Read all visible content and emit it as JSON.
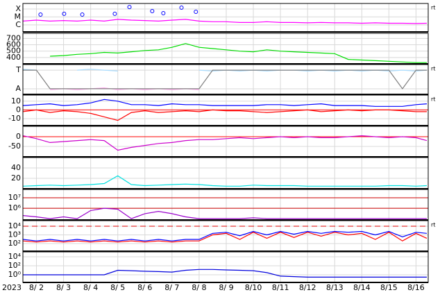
{
  "chart_data": [
    {
      "type": "line",
      "log": true,
      "right_label": "rt",
      "x": [
        1.5,
        2,
        2.5,
        3,
        3.5,
        4,
        4.5,
        5,
        5.5,
        6,
        6.5,
        7,
        7.5,
        8,
        8.5,
        9,
        9.5,
        10,
        10.5,
        11,
        11.5,
        12,
        12.5,
        13,
        13.5,
        14,
        14.5,
        15,
        15.5,
        16,
        16.4
      ],
      "xlim": [
        1.5,
        16.45
      ],
      "ylim": [
        1.3e-07,
        0.0005
      ],
      "yticks": [
        {
          "value": 0.0001,
          "label": "X"
        },
        {
          "value": 1e-05,
          "label": "M"
        },
        {
          "value": 1e-06,
          "label": "C"
        }
      ],
      "series": [
        {
          "color": "#ff00ff",
          "values": [
            3e-06,
            4e-06,
            3e-06,
            3.5e-06,
            3e-06,
            4e-06,
            3e-06,
            5e-06,
            4e-06,
            3.5e-06,
            3e-06,
            4e-06,
            5e-06,
            3e-06,
            2.5e-06,
            2.5e-06,
            2e-06,
            2e-06,
            2.5e-06,
            2e-06,
            2e-06,
            1.8e-06,
            2e-06,
            1.8e-06,
            1.8e-06,
            1.6e-06,
            1.8e-06,
            1.6e-06,
            1.6e-06,
            1.5e-06,
            1.6e-06
          ]
        }
      ],
      "markers": {
        "color": "#0000ff",
        "x": [
          2.15,
          3.02,
          3.69,
          4.89,
          5.43,
          6.27,
          6.68,
          7.35,
          7.88
        ],
        "values": [
          2e-05,
          2.5e-05,
          2e-05,
          2.5e-05,
          0.00018,
          5.5e-05,
          3e-05,
          0.00015,
          4.5e-05
        ]
      }
    },
    {
      "type": "line",
      "log": false,
      "x": [
        1.5,
        2,
        2.5,
        3,
        3.5,
        4,
        4.5,
        5,
        5.5,
        6,
        6.5,
        7,
        7.5,
        8,
        8.5,
        9,
        9.5,
        10,
        10.5,
        11,
        11.5,
        12,
        12.5,
        13,
        13.5,
        14,
        14.5,
        15,
        15.5,
        16,
        16.4
      ],
      "xlim": [
        1.5,
        16.45
      ],
      "ylim": [
        300,
        780
      ],
      "yticks": [
        700,
        600,
        500,
        400
      ],
      "series": [
        {
          "color": "#00dd00",
          "values": [
            null,
            null,
            420,
            430,
            450,
            460,
            480,
            470,
            490,
            510,
            520,
            560,
            620,
            560,
            540,
            520,
            500,
            490,
            520,
            500,
            490,
            480,
            470,
            460,
            370,
            360,
            350,
            340,
            330,
            320,
            320
          ]
        }
      ]
    },
    {
      "type": "line",
      "log": false,
      "right_label": "rt",
      "x": [
        1.5,
        2,
        2.5,
        3,
        3.5,
        4,
        4.5,
        5,
        5.5,
        6,
        6.5,
        7,
        7.5,
        8,
        8.5,
        9,
        9.5,
        10,
        10.5,
        11,
        11.5,
        12,
        12.5,
        13,
        13.5,
        14,
        14.5,
        15,
        15.5,
        16,
        16.4
      ],
      "xlim": [
        1.5,
        16.45
      ],
      "ylim": [
        -0.3,
        1.3
      ],
      "yticks": [
        {
          "value": 1,
          "label": "T"
        },
        {
          "value": 0,
          "label": "A"
        }
      ],
      "series": [
        {
          "color": "#aaddff",
          "values": [
            1.05,
            1.0,
            null,
            null,
            1.0,
            1.05,
            1.0,
            0.95,
            null,
            null,
            null,
            null,
            null,
            1.0,
            0.95,
            1.0,
            0.95,
            1.0,
            0.95,
            1.0,
            1.0,
            0.95,
            1.0,
            0.95,
            1.0,
            0.95,
            1.0,
            0.95,
            1.0,
            0.95,
            1.0
          ]
        },
        {
          "color": "#ffaaee",
          "values": [
            null,
            null,
            -0.05,
            0,
            -0.05,
            0,
            0.05,
            -0.05,
            0,
            -0.05,
            0,
            -0.05,
            0,
            -0.05,
            null,
            null,
            null,
            null,
            null,
            null,
            null,
            null,
            null,
            null,
            null,
            null,
            null,
            null,
            null,
            null,
            null
          ]
        },
        {
          "color": "#808080",
          "values": [
            1,
            1,
            0,
            0,
            0,
            0,
            0,
            0,
            0,
            0,
            0,
            0,
            0,
            0,
            1,
            1,
            1,
            1,
            1,
            1,
            1,
            1,
            1,
            1,
            1,
            1,
            1,
            1,
            0,
            1,
            1
          ]
        }
      ]
    },
    {
      "type": "line",
      "log": false,
      "right_label": "rt",
      "x": [
        1.5,
        2,
        2.5,
        3,
        3.5,
        4,
        4.5,
        5,
        5.5,
        6,
        6.5,
        7,
        7.5,
        8,
        8.5,
        9,
        9.5,
        10,
        10.5,
        11,
        11.5,
        12,
        12.5,
        13,
        13.5,
        14,
        14.5,
        15,
        15.5,
        16,
        16.4
      ],
      "xlim": [
        1.5,
        16.45
      ],
      "ylim": [
        -18,
        17
      ],
      "yticks": [
        10,
        0,
        -10
      ],
      "reference_lines": [
        {
          "value": 0,
          "color": "#ff0000"
        }
      ],
      "series": [
        {
          "color": "#0000ff",
          "values": [
            5,
            6,
            7,
            5,
            6,
            8,
            12,
            10,
            6,
            6,
            5,
            7,
            6,
            6,
            5,
            5,
            5,
            5,
            6,
            6,
            5,
            6,
            7,
            5,
            5,
            5,
            4,
            4,
            4,
            6,
            7
          ]
        },
        {
          "color": "#ff0000",
          "values": [
            -2,
            0,
            -3,
            -1,
            -2,
            -4,
            -8,
            -12,
            -3,
            -1,
            -3,
            -2,
            -1,
            -2,
            0,
            -1,
            -1,
            -2,
            -3,
            -2,
            -1,
            0,
            -2,
            -1,
            0,
            -1,
            0,
            0,
            -1,
            -2,
            -2
          ]
        }
      ]
    },
    {
      "type": "line",
      "log": false,
      "x": [
        1.5,
        2,
        2.5,
        3,
        3.5,
        4,
        4.5,
        5,
        5.5,
        6,
        6.5,
        7,
        7.5,
        8,
        8.5,
        9,
        9.5,
        10,
        10.5,
        11,
        11.5,
        12,
        12.5,
        13,
        13.5,
        14,
        14.5,
        15,
        15.5,
        16,
        16.4
      ],
      "xlim": [
        1.5,
        16.45
      ],
      "ylim": [
        -104,
        54
      ],
      "yticks": [
        0,
        -50
      ],
      "reference_lines": [
        {
          "value": 0,
          "color": "#ff0000"
        }
      ],
      "series": [
        {
          "color": "#cc00cc",
          "values": [
            5,
            -10,
            -30,
            -25,
            -20,
            -15,
            -20,
            -70,
            -55,
            -45,
            -35,
            -30,
            -20,
            -15,
            -15,
            -10,
            -5,
            -10,
            -5,
            0,
            -5,
            0,
            -5,
            -5,
            0,
            5,
            0,
            -5,
            0,
            -5,
            -20
          ]
        }
      ]
    },
    {
      "type": "line",
      "log": false,
      "x": [
        1.5,
        2,
        2.5,
        3,
        3.5,
        4,
        4.5,
        5,
        5.5,
        6,
        6.5,
        7,
        7.5,
        8,
        8.5,
        9,
        9.5,
        10,
        10.5,
        11,
        11.5,
        12,
        12.5,
        13,
        13.5,
        14,
        14.5,
        15,
        15.5,
        16,
        16.4
      ],
      "xlim": [
        1.5,
        16.45
      ],
      "ylim": [
        0,
        60
      ],
      "yticks": [
        40,
        20
      ],
      "series": [
        {
          "color": "#00e0e0",
          "values": [
            5,
            6,
            7,
            6,
            7,
            8,
            10,
            25,
            8,
            6,
            7,
            8,
            9,
            8,
            6,
            5,
            5,
            7,
            6,
            6,
            6,
            5,
            5,
            5,
            5,
            5,
            5,
            6,
            6,
            5,
            6
          ]
        }
      ]
    },
    {
      "type": "line",
      "log": true,
      "x": [
        1.5,
        2,
        2.5,
        3,
        3.5,
        4,
        4.5,
        5,
        5.5,
        6,
        6.5,
        7,
        7.5,
        8,
        8.5,
        9,
        9.5,
        10,
        10.5,
        11,
        11.5,
        12,
        12.5,
        13,
        13.5,
        14,
        14.5,
        15,
        15.5,
        16,
        16.4
      ],
      "xlim": [
        1.5,
        16.45
      ],
      "ylim": [
        75000,
        63000000
      ],
      "yticks": [
        {
          "value": 10000000,
          "label": "10⁷"
        },
        {
          "value": 1000000,
          "label": "10⁶"
        }
      ],
      "reference_lines": [
        {
          "value": 10000000,
          "color": "#cc0000"
        },
        {
          "value": 1000000,
          "color": "#cc0000"
        }
      ],
      "series": [
        {
          "color": "#9900cc",
          "values": [
            200000,
            150000,
            100000,
            150000,
            100000,
            600000,
            1000000,
            800000,
            100000,
            300000,
            500000,
            300000,
            150000,
            100000,
            100000,
            100000,
            100000,
            120000,
            100000,
            100000,
            100000,
            100000,
            100000,
            100000,
            100000,
            100000,
            100000,
            100000,
            100000,
            100000,
            100000
          ]
        }
      ]
    },
    {
      "type": "line",
      "log": true,
      "right_label": "rt",
      "x": [
        1.5,
        2,
        2.5,
        3,
        3.5,
        4,
        4.5,
        5,
        5.5,
        6,
        6.5,
        7,
        7.5,
        8,
        8.5,
        9,
        9.5,
        10,
        10.5,
        11,
        11.5,
        12,
        12.5,
        13,
        13.5,
        14,
        14.5,
        15,
        15.5,
        16,
        16.4
      ],
      "xlim": [
        1.5,
        16.45
      ],
      "ylim": [
        13,
        44000
      ],
      "yticks": [
        {
          "value": 10000,
          "label": "10⁴"
        },
        {
          "value": 1000,
          "label": "10³"
        },
        {
          "value": 100,
          "label": "10²"
        }
      ],
      "reference_lines": [
        {
          "value": 10000,
          "color": "#dd0000",
          "dashed": true
        }
      ],
      "series": [
        {
          "color": "#0000ff",
          "values": [
            300,
            200,
            300,
            200,
            300,
            200,
            300,
            200,
            300,
            200,
            300,
            200,
            300,
            300,
            1500,
            2000,
            800,
            2500,
            1000,
            2500,
            1200,
            2500,
            1500,
            2500,
            2000,
            2500,
            1000,
            2500,
            600,
            2000,
            1500
          ]
        },
        {
          "color": "#ff0000",
          "values": [
            200,
            150,
            200,
            150,
            200,
            150,
            200,
            150,
            200,
            150,
            200,
            150,
            200,
            200,
            1000,
            1500,
            300,
            2000,
            400,
            2000,
            500,
            2000,
            700,
            2000,
            1000,
            1500,
            300,
            2000,
            200,
            1500,
            400
          ]
        }
      ]
    },
    {
      "type": "line",
      "log": true,
      "year": "2023",
      "x": [
        1.5,
        2,
        2.5,
        3,
        3.5,
        4,
        4.5,
        5,
        5.5,
        6,
        6.5,
        7,
        7.5,
        8,
        8.5,
        9,
        9.5,
        10,
        10.5,
        11,
        11.5,
        12,
        12.5,
        13,
        13.5,
        14,
        14.5,
        15,
        15.5,
        16,
        16.4
      ],
      "xlim": [
        1.5,
        16.45
      ],
      "ylim": [
        0.02,
        120000
      ],
      "yticks": [
        {
          "value": 10000,
          "label": "10⁴"
        },
        {
          "value": 100,
          "label": "10²"
        },
        {
          "value": 1,
          "label": "10⁰"
        }
      ],
      "xticks": [
        {
          "value": 2,
          "label": "8/ 2"
        },
        {
          "value": 3,
          "label": "8/ 3"
        },
        {
          "value": 4,
          "label": "8/ 4"
        },
        {
          "value": 5,
          "label": "8/ 5"
        },
        {
          "value": 6,
          "label": "8/ 6"
        },
        {
          "value": 7,
          "label": "8/ 7"
        },
        {
          "value": 8,
          "label": "8/ 8"
        },
        {
          "value": 9,
          "label": "8/ 9"
        },
        {
          "value": 10,
          "label": "8/10"
        },
        {
          "value": 11,
          "label": "8/11"
        },
        {
          "value": 12,
          "label": "8/12"
        },
        {
          "value": 13,
          "label": "8/13"
        },
        {
          "value": 14,
          "label": "8/14"
        },
        {
          "value": 15,
          "label": "8/15"
        },
        {
          "value": 16,
          "label": "8/16"
        }
      ],
      "series": [
        {
          "color": "#0000dd",
          "values": [
            1,
            1,
            1,
            1,
            1,
            1,
            1,
            10,
            8,
            6,
            5,
            4,
            10,
            15,
            15,
            12,
            10,
            8,
            3,
            0.5,
            0.4,
            0.3,
            0.3,
            0.3,
            0.3,
            0.3,
            0.3,
            0.3,
            0.3,
            0.3,
            0.3
          ]
        }
      ]
    }
  ]
}
